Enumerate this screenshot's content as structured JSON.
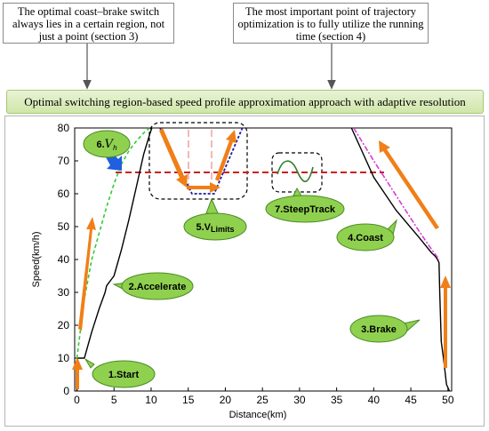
{
  "notes": {
    "left": "The optimal coast–brake switch always lies in a certain region, not just a point (section 3)",
    "right": "The most important point of trajectory optimization is to fully utilize the running time (section 4)"
  },
  "banner": "Optimal switching region-based speed profile approximation approach with adaptive resolution",
  "axes": {
    "ylabel": "Speed(km/h)",
    "xlabel": "Distance(km)",
    "xticks": [
      "0",
      "5",
      "10",
      "15",
      "20",
      "25",
      "30",
      "35",
      "40",
      "45",
      "50"
    ],
    "yticks": [
      "0",
      "10",
      "20",
      "30",
      "40",
      "50",
      "60",
      "70",
      "80"
    ]
  },
  "labels": {
    "start": "1.Start",
    "accelerate": "2.Accelerate",
    "brake": "3.Brake",
    "coast": "4.Coast",
    "vlimits": "5.V",
    "vlimits_sub": "Limits",
    "vh": "6.",
    "vh_var": "V",
    "vh_sub": "h",
    "steeptrack": "7.SteepTrack"
  },
  "colors": {
    "bubble_fill": "#8fd14f",
    "bubble_stroke": "#4a8a23",
    "orange_arrow": "#f07f17",
    "blue_arrow": "#1f5fe0",
    "accel_curve": "#33cc33",
    "vlimit_curve": "#1a1aa8",
    "coast_curve": "#d63bd6",
    "vh_line": "#cc2020",
    "steep_curve": "#2f7f2f"
  },
  "chart_data": {
    "type": "line",
    "xlabel": "Distance(km)",
    "ylabel": "Speed(km/h)",
    "xlim": [
      -0.3,
      50.5
    ],
    "ylim": [
      0,
      80
    ],
    "vh_level": 66.5,
    "series": [
      {
        "x": [
          0,
          0.1,
          1,
          2,
          3,
          3.8,
          4,
          5,
          6,
          7,
          8,
          9,
          9.8,
          10.1
        ],
        "y": [
          0,
          10,
          10,
          18,
          25,
          30,
          32,
          35,
          43,
          52,
          62,
          72,
          78,
          80
        ]
      },
      {
        "x": [
          0,
          1,
          2,
          3,
          4,
          5,
          6,
          7,
          8,
          9,
          9.8
        ],
        "y": [
          10,
          28,
          40,
          48,
          56,
          63,
          69,
          73,
          76,
          78.5,
          80
        ]
      },
      {
        "x": [
          11.2,
          15.5,
          18.5,
          22.3
        ],
        "y": [
          80,
          60,
          60,
          80
        ]
      },
      {
        "x": [
          37,
          38,
          40,
          43,
          46,
          47.8,
          48.3,
          48.6,
          48.8,
          48.9,
          49.1,
          49.4,
          49.8,
          50.2
        ],
        "y": [
          80,
          75,
          65,
          55,
          47,
          42,
          41,
          40,
          39,
          30,
          15,
          10,
          2,
          0
        ]
      },
      {
        "x": [
          37.3,
          40,
          42,
          44,
          46,
          47.5,
          48.8
        ],
        "y": [
          80,
          70,
          63,
          56,
          49,
          44,
          40
        ]
      }
    ]
  }
}
